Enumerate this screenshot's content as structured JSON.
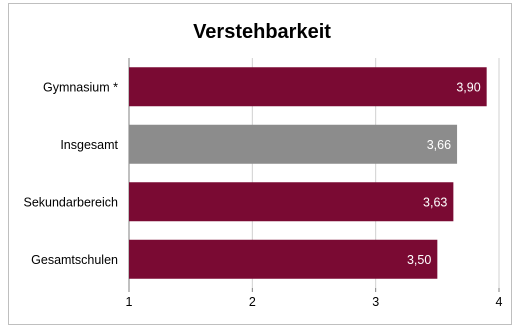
{
  "chart_data": {
    "type": "bar",
    "orientation": "horizontal",
    "title": "Verstehbarkeit",
    "categories": [
      "Gymnasium *",
      "Insgesamt",
      "Sekundarbereich",
      "Gesamtschulen"
    ],
    "values": [
      3.9,
      3.66,
      3.63,
      3.5
    ],
    "value_labels": [
      "3,90",
      "3,66",
      "3,63",
      "3,50"
    ],
    "bar_colors": [
      "#7a0a33",
      "#8c8c8c",
      "#7a0a33",
      "#7a0a33"
    ],
    "xlim": [
      1,
      4
    ],
    "xticks": [
      1,
      2,
      3,
      4
    ],
    "xtick_labels": [
      "1",
      "2",
      "3",
      "4"
    ],
    "grid": true,
    "legend": false
  }
}
